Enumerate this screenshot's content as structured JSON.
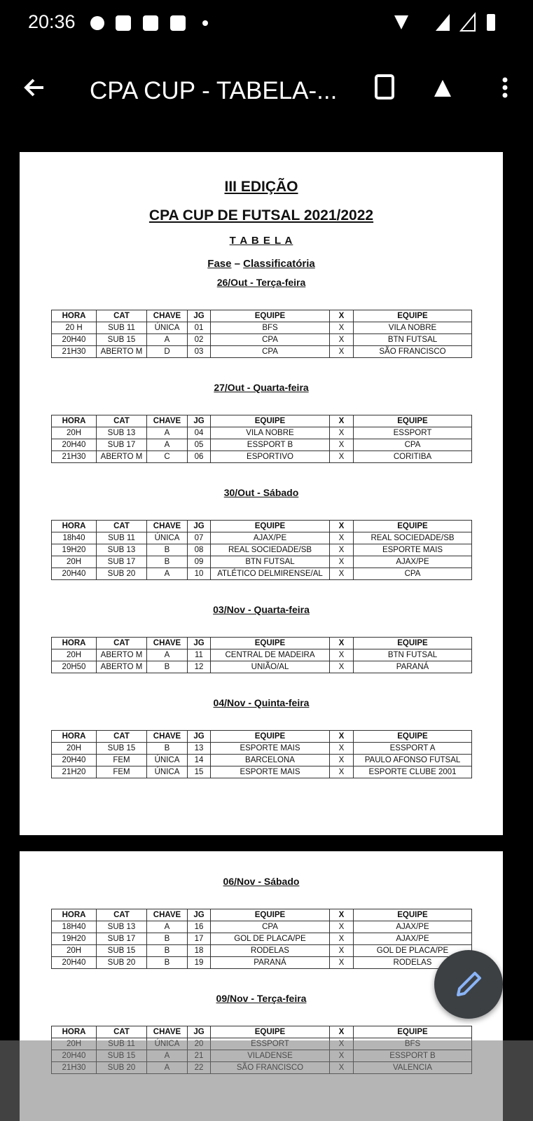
{
  "status_bar": {
    "time": "20:36"
  },
  "app_bar": {
    "title": "CPA CUP - TABELA-..."
  },
  "document": {
    "edition": "III EDIÇÃO",
    "title": "CPA CUP DE FUTSAL 2021/2022",
    "subtitle": "T A B E L A",
    "phase": {
      "label": "Fase",
      "sep": "–",
      "value": "Classificatória"
    },
    "header": [
      "HORA",
      "CAT",
      "CHAVE",
      "JG",
      "EQUIPE",
      "X",
      "EQUIPE"
    ],
    "pages": [
      {
        "sections": [
          {
            "date": "26/Out - Terça-feira",
            "rows": [
              [
                "20 H",
                "SUB 11",
                "ÚNICA",
                "01",
                "BFS",
                "X",
                "VILA NOBRE"
              ],
              [
                "20H40",
                "SUB 15",
                "A",
                "02",
                "CPA",
                "X",
                "BTN FUTSAL"
              ],
              [
                "21H30",
                "ABERTO M",
                "D",
                "03",
                "CPA",
                "X",
                "SÃO FRANCISCO"
              ]
            ]
          },
          {
            "date": "27/Out - Quarta-feira",
            "rows": [
              [
                "20H",
                "SUB 13",
                "A",
                "04",
                "VILA NOBRE",
                "X",
                "ESSPORT"
              ],
              [
                "20H40",
                "SUB 17",
                "A",
                "05",
                "ESSPORT B",
                "X",
                "CPA"
              ],
              [
                "21H30",
                "ABERTO M",
                "C",
                "06",
                "ESPORTIVO",
                "X",
                "CORITIBA"
              ]
            ]
          },
          {
            "date": "30/Out - Sábado",
            "rows": [
              [
                "18h40",
                "SUB 11",
                "ÚNICA",
                "07",
                "AJAX/PE",
                "X",
                "REAL SOCIEDADE/SB"
              ],
              [
                "19H20",
                "SUB 13",
                "B",
                "08",
                "REAL SOCIEDADE/SB",
                "X",
                "ESPORTE MAIS"
              ],
              [
                "20H",
                "SUB 17",
                "B",
                "09",
                "BTN FUTSAL",
                "X",
                "AJAX/PE"
              ],
              [
                "20H40",
                "SUB 20",
                "A",
                "10",
                "ATLÉTICO DELMIRENSE/AL",
                "X",
                "CPA"
              ]
            ]
          },
          {
            "date": "03/Nov - Quarta-feira",
            "rows": [
              [
                "20H",
                "ABERTO M",
                "A",
                "11",
                "CENTRAL DE MADEIRA",
                "X",
                "BTN FUTSAL"
              ],
              [
                "20H50",
                "ABERTO M",
                "B",
                "12",
                "UNIÃO/AL",
                "X",
                "PARANÁ"
              ]
            ]
          },
          {
            "date": "04/Nov - Quinta-feira",
            "rows": [
              [
                "20H",
                "SUB 15",
                "B",
                "13",
                "ESPORTE MAIS",
                "X",
                "ESSPORT A"
              ],
              [
                "20H40",
                "FEM",
                "ÚNICA",
                "14",
                "BARCELONA",
                "X",
                "PAULO AFONSO FUTSAL"
              ],
              [
                "21H20",
                "FEM",
                "ÚNICA",
                "15",
                "ESPORTE MAIS",
                "X",
                "ESPORTE CLUBE 2001"
              ]
            ]
          }
        ]
      },
      {
        "sections": [
          {
            "date": "06/Nov - Sábado",
            "rows": [
              [
                "18H40",
                "SUB 13",
                "A",
                "16",
                "CPA",
                "X",
                "AJAX/PE"
              ],
              [
                "19H20",
                "SUB 17",
                "B",
                "17",
                "GOL DE PLACA/PE",
                "X",
                "AJAX/PE"
              ],
              [
                "20H",
                "SUB 15",
                "B",
                "18",
                "RODELAS",
                "X",
                "GOL DE PLACA/PE"
              ],
              [
                "20H40",
                "SUB 20",
                "B",
                "19",
                "PARANÁ",
                "X",
                "RODELAS"
              ]
            ]
          },
          {
            "date": "09/Nov - Terça-feira",
            "rows": [
              [
                "20H",
                "SUB 11",
                "ÚNICA",
                "20",
                "ESSPORT",
                "X",
                "BFS"
              ],
              [
                "20H40",
                "SUB 15",
                "A",
                "21",
                "VILADENSE",
                "X",
                "ESSPORT B"
              ],
              [
                "21H30",
                "SUB 20",
                "A",
                "22",
                "SÃO FRANCISCO",
                "X",
                "VALENCIA"
              ]
            ]
          }
        ]
      }
    ]
  }
}
